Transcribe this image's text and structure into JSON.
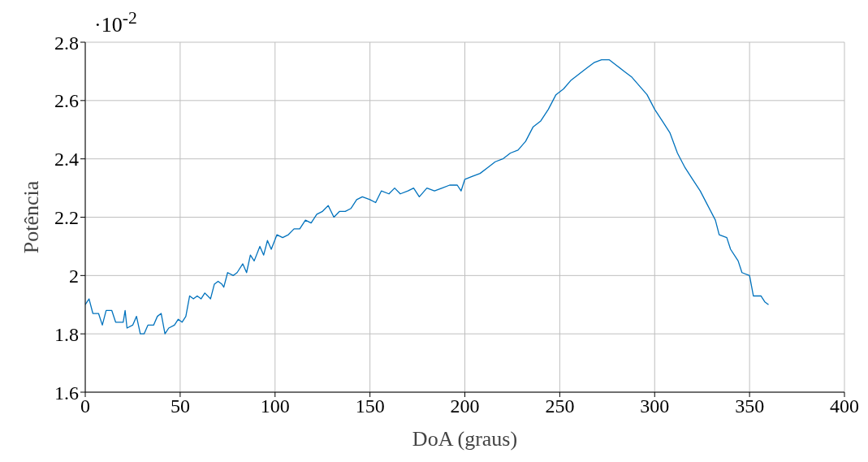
{
  "chart_data": {
    "type": "line",
    "xlabel": "DoA (graus)",
    "ylabel": "Potência",
    "annotations": [
      "·10$^{-2}$"
    ],
    "xlim": [
      0,
      400
    ],
    "xticks": [
      0,
      50,
      100,
      150,
      200,
      250,
      300,
      350,
      400
    ],
    "ylim": [
      1.6,
      2.8
    ],
    "yticks": [
      {
        "value": 1.6,
        "label": "1.6"
      },
      {
        "value": 1.8,
        "label": "1.8"
      },
      {
        "value": 2,
        "label": "2"
      },
      {
        "value": 2.2,
        "label": "2.2"
      },
      {
        "value": 2.4,
        "label": "2.4"
      },
      {
        "value": 2.6,
        "label": "2.6"
      },
      {
        "value": 2.8,
        "label": "2.8"
      }
    ],
    "grid": true,
    "legend": false,
    "marker": "none",
    "line_style": "solid",
    "x": [
      0,
      2,
      4,
      7,
      9,
      11,
      14,
      16,
      20,
      21,
      22,
      25,
      27,
      29,
      31,
      33,
      36,
      38,
      40,
      42,
      44,
      47,
      49,
      51,
      53,
      55,
      57,
      59,
      61,
      63,
      66,
      68,
      70,
      72,
      73,
      75,
      78,
      80,
      83,
      85,
      87,
      89,
      92,
      94,
      96,
      98,
      101,
      104,
      107,
      110,
      113,
      116,
      119,
      122,
      125,
      128,
      131,
      134,
      137,
      140,
      143,
      146,
      150,
      153,
      156,
      160,
      163,
      166,
      170,
      173,
      176,
      180,
      184,
      188,
      192,
      196,
      198,
      200,
      204,
      208,
      212,
      216,
      220,
      224,
      228,
      232,
      236,
      240,
      244,
      248,
      252,
      256,
      260,
      264,
      268,
      272,
      276,
      280,
      284,
      288,
      292,
      296,
      300,
      304,
      308,
      312,
      316,
      320,
      324,
      328,
      332,
      334,
      338,
      340,
      344,
      346,
      350,
      352,
      356,
      358,
      360
    ],
    "series": [
      {
        "color": "#0072bd",
        "values": [
          1.9,
          1.92,
          1.87,
          1.87,
          1.83,
          1.88,
          1.88,
          1.84,
          1.84,
          1.88,
          1.82,
          1.83,
          1.86,
          1.8,
          1.8,
          1.83,
          1.83,
          1.86,
          1.87,
          1.8,
          1.82,
          1.83,
          1.85,
          1.84,
          1.86,
          1.93,
          1.92,
          1.93,
          1.92,
          1.94,
          1.92,
          1.97,
          1.98,
          1.97,
          1.96,
          2.01,
          2.0,
          2.01,
          2.04,
          2.01,
          2.07,
          2.05,
          2.1,
          2.07,
          2.12,
          2.09,
          2.14,
          2.13,
          2.14,
          2.16,
          2.16,
          2.19,
          2.18,
          2.21,
          2.22,
          2.24,
          2.2,
          2.22,
          2.22,
          2.23,
          2.26,
          2.27,
          2.26,
          2.25,
          2.29,
          2.28,
          2.3,
          2.28,
          2.29,
          2.3,
          2.27,
          2.3,
          2.29,
          2.3,
          2.31,
          2.31,
          2.29,
          2.33,
          2.34,
          2.35,
          2.37,
          2.39,
          2.4,
          2.42,
          2.43,
          2.46,
          2.51,
          2.53,
          2.57,
          2.62,
          2.64,
          2.67,
          2.69,
          2.71,
          2.73,
          2.74,
          2.74,
          2.72,
          2.7,
          2.68,
          2.65,
          2.62,
          2.57,
          2.53,
          2.49,
          2.42,
          2.37,
          2.33,
          2.29,
          2.24,
          2.19,
          2.14,
          2.13,
          2.09,
          2.05,
          2.01,
          2.0,
          1.93,
          1.93,
          1.91,
          1.9
        ]
      }
    ]
  }
}
